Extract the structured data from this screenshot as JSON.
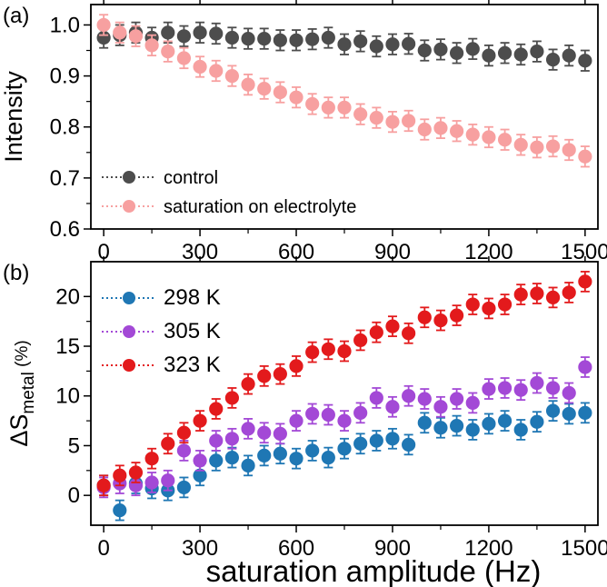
{
  "chart_data": [
    {
      "type": "scatter",
      "panel_label": "(a)",
      "xlabel": "",
      "ylabel": "Intensity",
      "xlim": [
        -40,
        1540
      ],
      "ylim": [
        0.6,
        1.04
      ],
      "xticks": [
        0,
        300,
        600,
        900,
        1200,
        1500
      ],
      "xtick_labels": [
        "0",
        "300",
        "600",
        "900",
        "1200",
        "1500"
      ],
      "yticks": [
        0.6,
        0.7,
        0.8,
        0.9,
        1.0
      ],
      "ytick_labels": [
        "0.6",
        "0.7",
        "0.8",
        "0.9",
        "1.0"
      ],
      "legend_position": "bottom-left",
      "x": [
        0,
        50,
        100,
        150,
        200,
        250,
        300,
        350,
        400,
        450,
        500,
        550,
        600,
        650,
        700,
        750,
        800,
        850,
        900,
        950,
        1000,
        1050,
        1100,
        1150,
        1200,
        1250,
        1300,
        1350,
        1400,
        1450,
        1500
      ],
      "series": [
        {
          "name": "control",
          "color": "#4d4d4d",
          "error": 0.02,
          "values": [
            0.975,
            0.98,
            0.985,
            0.975,
            0.985,
            0.978,
            0.985,
            0.983,
            0.975,
            0.973,
            0.973,
            0.97,
            0.97,
            0.972,
            0.975,
            0.962,
            0.968,
            0.958,
            0.962,
            0.963,
            0.95,
            0.952,
            0.945,
            0.953,
            0.94,
            0.945,
            0.942,
            0.948,
            0.932,
            0.94,
            0.93
          ]
        },
        {
          "name": "saturation on electrolyte",
          "color": "#f7a0a0",
          "error": 0.02,
          "values": [
            1.0,
            0.985,
            0.978,
            0.96,
            0.948,
            0.935,
            0.918,
            0.91,
            0.9,
            0.883,
            0.875,
            0.868,
            0.858,
            0.845,
            0.838,
            0.838,
            0.825,
            0.818,
            0.81,
            0.812,
            0.795,
            0.798,
            0.792,
            0.785,
            0.78,
            0.775,
            0.765,
            0.76,
            0.762,
            0.755,
            0.742
          ]
        }
      ]
    },
    {
      "type": "scatter",
      "panel_label": "(b)",
      "xlabel": "saturation amplitude (Hz)",
      "ylabel_main": "ΔS",
      "ylabel_sub": "metal",
      "ylabel_unit": " (%)",
      "xlim": [
        -40,
        1540
      ],
      "ylim": [
        -3,
        23.5
      ],
      "xticks": [
        0,
        300,
        600,
        900,
        1200,
        1500
      ],
      "xtick_labels": [
        "0",
        "300",
        "600",
        "900",
        "1200",
        "1500"
      ],
      "yticks": [
        0,
        5,
        10,
        15,
        20
      ],
      "ytick_labels": [
        "0",
        "5",
        "10",
        "15",
        "20"
      ],
      "legend_position": "top-left",
      "x": [
        0,
        50,
        100,
        150,
        200,
        250,
        300,
        350,
        400,
        450,
        500,
        550,
        600,
        650,
        700,
        750,
        800,
        850,
        900,
        950,
        1000,
        1050,
        1100,
        1150,
        1200,
        1250,
        1300,
        1350,
        1400,
        1450,
        1500
      ],
      "series": [
        {
          "name": "298 K",
          "color": "#1f77b4",
          "error": 1.0,
          "values": [
            1.0,
            -1.5,
            1.2,
            0.7,
            0.5,
            0.8,
            2.0,
            3.5,
            3.8,
            3.0,
            4.0,
            4.2,
            3.7,
            4.5,
            3.8,
            4.7,
            5.2,
            5.5,
            5.7,
            5.1,
            7.3,
            6.8,
            7.0,
            6.6,
            7.2,
            7.5,
            6.6,
            7.4,
            8.5,
            8.2,
            8.3
          ]
        },
        {
          "name": "305 K",
          "color": "#a349d6",
          "error": 1.0,
          "values": [
            0.8,
            1.2,
            1.0,
            1.3,
            1.5,
            4.5,
            3.5,
            5.5,
            5.7,
            6.7,
            6.3,
            6.2,
            7.5,
            8.2,
            8.1,
            7.5,
            8.3,
            9.8,
            8.9,
            10.0,
            9.7,
            8.9,
            9.7,
            9.3,
            10.7,
            10.8,
            10.6,
            11.3,
            10.8,
            10.3,
            12.9
          ]
        },
        {
          "name": "323 K",
          "color": "#e31a1c",
          "error": 1.0,
          "values": [
            1.0,
            2.0,
            2.3,
            3.7,
            5.2,
            6.3,
            7.5,
            8.7,
            9.8,
            11.2,
            12.0,
            12.2,
            13.0,
            14.4,
            14.7,
            14.5,
            15.6,
            16.4,
            17.0,
            16.3,
            17.9,
            17.6,
            18.1,
            19.2,
            18.8,
            19.2,
            20.2,
            20.3,
            19.9,
            20.4,
            21.5
          ]
        }
      ]
    }
  ]
}
